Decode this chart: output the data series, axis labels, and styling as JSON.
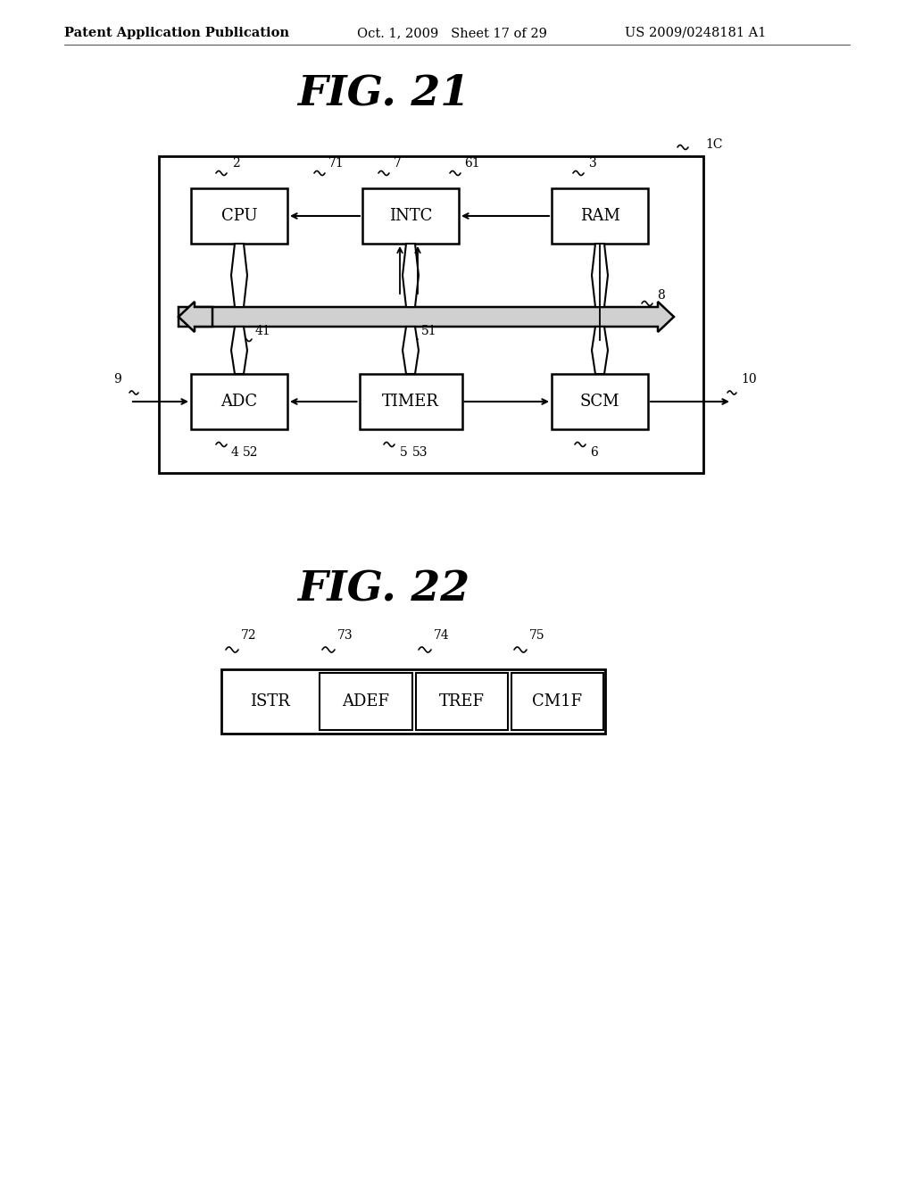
{
  "background_color": "#ffffff",
  "header_left": "Patent Application Publication",
  "header_mid": "Oct. 1, 2009   Sheet 17 of 29",
  "header_right": "US 2009/0248181 A1",
  "fig21_title": "FIG. 21",
  "fig22_title": "FIG. 22",
  "fig22_fields": [
    "ISTR",
    "ADEF",
    "TREF",
    "CM1F"
  ],
  "fig22_refs": [
    "72",
    "73",
    "74",
    "75"
  ]
}
